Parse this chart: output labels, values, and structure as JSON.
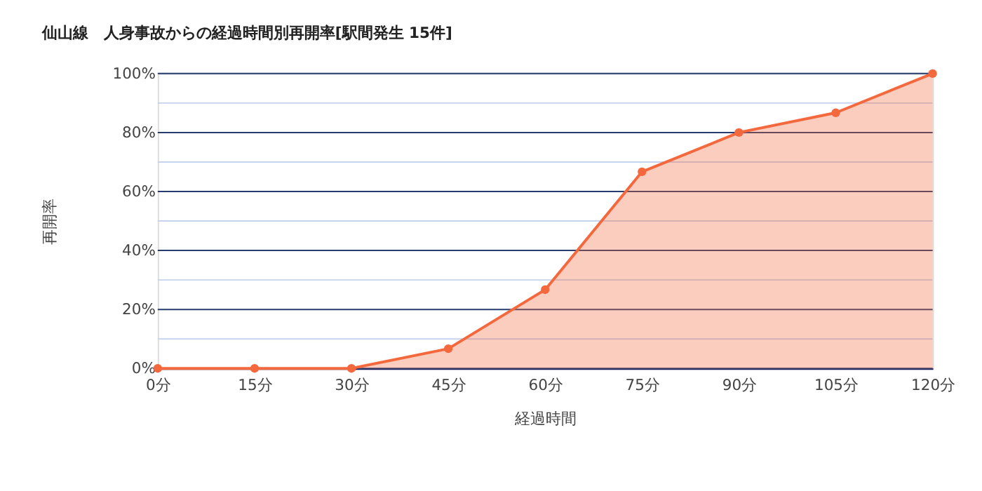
{
  "chart_data": {
    "type": "area",
    "title": "仙山線　人身事故からの経過時間別再開率[駅間発生 15件]",
    "xlabel": "経過時間",
    "ylabel": "再開率",
    "categories": [
      "0分",
      "15分",
      "30分",
      "45分",
      "60分",
      "75分",
      "90分",
      "105分",
      "120分"
    ],
    "series": [
      {
        "color": "#f4683d",
        "values": [
          0,
          0,
          0,
          6.7,
          26.7,
          66.7,
          80,
          86.7,
          100
        ]
      }
    ],
    "ylim": [
      0,
      100
    ],
    "yticks": [
      {
        "value": 0,
        "label": "0%"
      },
      {
        "value": 10,
        "label": null
      },
      {
        "value": 20,
        "label": "20%"
      },
      {
        "value": 30,
        "label": null
      },
      {
        "value": 40,
        "label": "40%"
      },
      {
        "value": 50,
        "label": null
      },
      {
        "value": 60,
        "label": "60%"
      },
      {
        "value": 70,
        "label": null
      },
      {
        "value": 80,
        "label": "80%"
      },
      {
        "value": 90,
        "label": null
      },
      {
        "value": 100,
        "label": "100%"
      }
    ],
    "grid": "y",
    "marker": "circle",
    "line_style": "solid"
  }
}
